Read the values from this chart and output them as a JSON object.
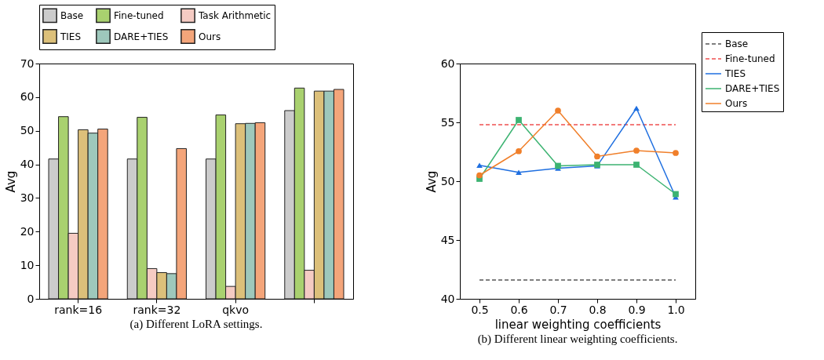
{
  "chart_data": [
    {
      "type": "bar",
      "title": "(a) Different LoRA settings.",
      "ylabel": "Avg",
      "categories": [
        "rank=16",
        "rank=32",
        "qkvo",
        null
      ],
      "ylim": [
        0,
        70
      ],
      "yticks": [
        0,
        10,
        20,
        30,
        40,
        50,
        60,
        70
      ],
      "grid": false,
      "legend": "top",
      "series": [
        {
          "name": "Base",
          "color": "#cccccc",
          "values": [
            41.6,
            41.6,
            41.6,
            56.0
          ]
        },
        {
          "name": "Fine-tuned",
          "color": "#a9d16f",
          "values": [
            54.2,
            54.0,
            54.7,
            62.7
          ]
        },
        {
          "name": "Task Arithmetic",
          "color": "#f5cbc3",
          "values": [
            19.5,
            9.0,
            3.7,
            8.5
          ]
        },
        {
          "name": "TIES",
          "color": "#dcc07a",
          "values": [
            50.3,
            7.8,
            52.1,
            61.8
          ]
        },
        {
          "name": "DARE+TIES",
          "color": "#9ec8bc",
          "values": [
            49.3,
            7.5,
            52.2,
            61.8
          ]
        },
        {
          "name": "Ours",
          "color": "#f4a57a",
          "values": [
            50.5,
            44.7,
            52.4,
            62.3
          ]
        }
      ]
    },
    {
      "type": "line",
      "title": "(b) Different linear weighting coefficients.",
      "xlabel": "linear weighting coefficients",
      "ylabel": "Avg",
      "x": [
        0.5,
        0.6,
        0.7,
        0.8,
        0.9,
        1.0
      ],
      "xlim": [
        0.45,
        1.05
      ],
      "xticks": [
        0.5,
        0.6,
        0.7,
        0.8,
        0.9,
        {
          "value": 1.0,
          "label": "1.0"
        }
      ],
      "ylim": [
        40,
        60
      ],
      "yticks": [
        40,
        45,
        50,
        55,
        60
      ],
      "grid": false,
      "legend": "top right",
      "series": [
        {
          "name": "Base",
          "color": "#555555",
          "line_style": "dashed",
          "marker": "none",
          "values": [
            41.6,
            41.6,
            41.6,
            41.6,
            41.6,
            41.6
          ]
        },
        {
          "name": "Fine-tuned",
          "color": "#f05050",
          "line_style": "dashed",
          "marker": "none",
          "values": [
            54.8,
            54.8,
            54.8,
            54.8,
            54.8,
            54.8
          ]
        },
        {
          "name": "TIES",
          "color": "#1f6fe0",
          "line_style": "solid",
          "marker": "triangle",
          "values": [
            51.35,
            50.75,
            51.1,
            51.3,
            56.2,
            48.65
          ]
        },
        {
          "name": "DARE+TIES",
          "color": "#3cb371",
          "line_style": "solid",
          "marker": "square",
          "values": [
            50.2,
            55.2,
            51.3,
            51.4,
            51.4,
            48.9
          ]
        },
        {
          "name": "Ours",
          "color": "#f07f2a",
          "line_style": "solid",
          "marker": "circle",
          "values": [
            50.5,
            52.55,
            56.0,
            52.1,
            52.6,
            52.4
          ]
        }
      ]
    }
  ]
}
